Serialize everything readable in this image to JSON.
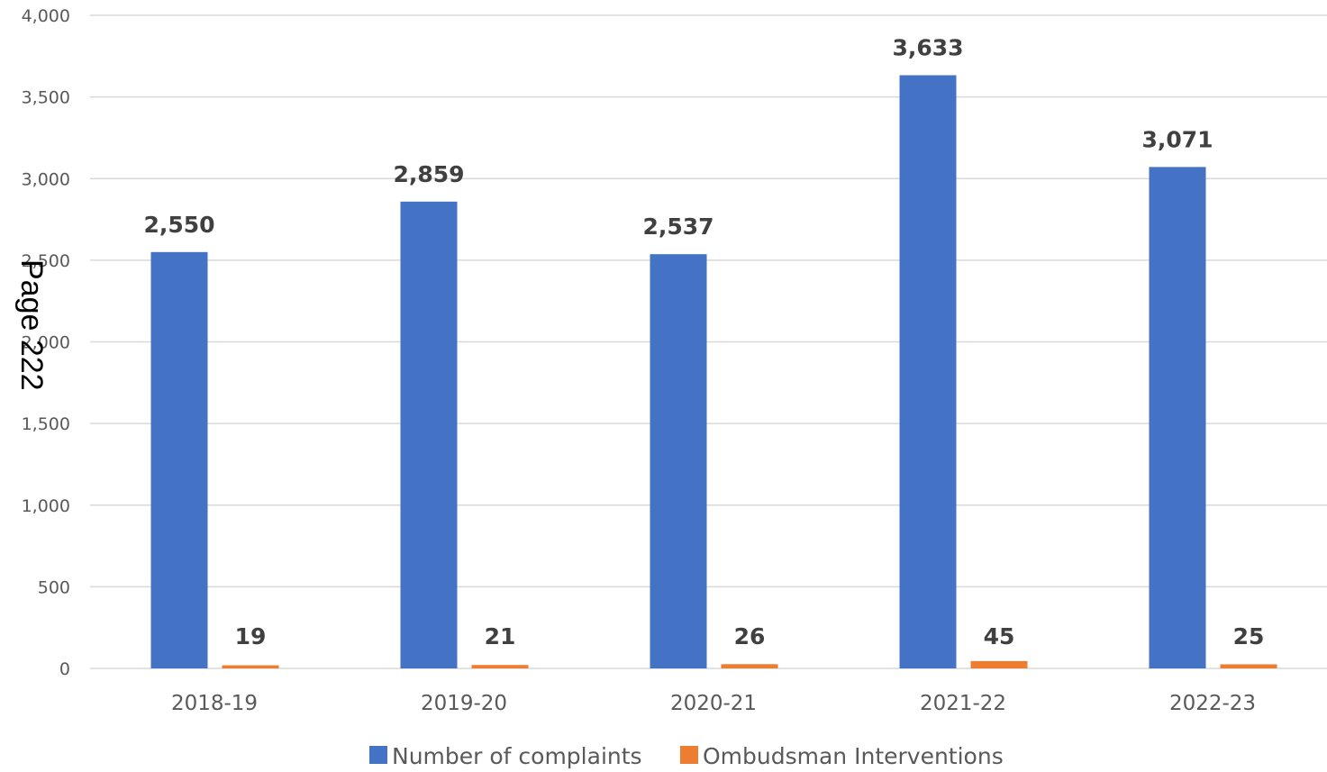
{
  "page_stamp": "Page 222",
  "chart_data": {
    "type": "bar",
    "categories": [
      "2018-19",
      "2019-20",
      "2020-21",
      "2021-22",
      "2022-23"
    ],
    "series": [
      {
        "name": "Number of complaints",
        "color": "#4472C4",
        "values": [
          2550,
          2859,
          2537,
          3633,
          3071
        ],
        "labels": [
          "2,550",
          "2,859",
          "2,537",
          "3,633",
          "3,071"
        ]
      },
      {
        "name": "Ombudsman Interventions",
        "color": "#ED7D31",
        "values": [
          19,
          21,
          26,
          45,
          25
        ],
        "labels": [
          "19",
          "21",
          "26",
          "45",
          "25"
        ]
      }
    ],
    "title": "",
    "xlabel": "",
    "ylabel": "",
    "ylim": [
      0,
      4000
    ],
    "yticks": [
      0,
      500,
      1000,
      1500,
      2000,
      2500,
      3000,
      3500,
      4000
    ],
    "ytick_labels": [
      "0",
      "500",
      "1,000",
      "1,500",
      "2,000",
      "2,500",
      "3,000",
      "3,500",
      "4,000"
    ],
    "grid": true,
    "gridline_color": "#D9D9D9",
    "legend_position": "bottom"
  }
}
